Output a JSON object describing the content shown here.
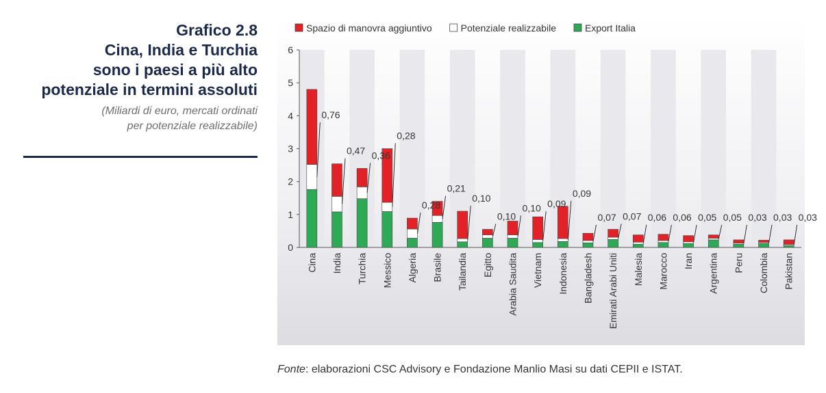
{
  "header": {
    "chart_number": "Grafico 2.8",
    "title_lines": [
      "Cina, India e Turchia",
      "sono i paesi a più alto",
      "potenziale in termini assoluti"
    ],
    "subtitle": "(Miliardi di euro, mercati ordinati\nper potenziale realizzabile)"
  },
  "source": {
    "lead": "Fonte",
    "text": ": elaborazioni CSC Advisory e Fondazione Manlio Masi su dati CEPII e ISTAT."
  },
  "colors": {
    "spazio": "#e32228",
    "potenziale": "#ffffff",
    "export": "#2eaa56",
    "title": "#1b2a4a",
    "band": "#e9e9ed"
  },
  "chart_data": {
    "type": "bar",
    "stacked": true,
    "ylim": [
      0,
      6
    ],
    "yticks": [
      0,
      1,
      2,
      3,
      4,
      5,
      6
    ],
    "legend_position": "top",
    "categories": [
      "Cina",
      "India",
      "Turchia",
      "Messico",
      "Algeria",
      "Brasile",
      "Tailandia",
      "Egitto",
      "Arabia Saudita",
      "Vietnam",
      "Indonesia",
      "Bangladesh",
      "Emirati Arabi Uniti",
      "Malesia",
      "Marocco",
      "Iran",
      "Argentina",
      "Peru",
      "Colombia",
      "Pakistan"
    ],
    "series": [
      {
        "name": "Export Italia",
        "color": "#2eaa56",
        "values": [
          1.76,
          1.08,
          1.48,
          1.09,
          0.28,
          0.76,
          0.17,
          0.28,
          0.28,
          0.15,
          0.18,
          0.14,
          0.24,
          0.1,
          0.15,
          0.12,
          0.23,
          0.1,
          0.12,
          0.06
        ]
      },
      {
        "name": "Potenziale realizzabile",
        "color": "#ffffff",
        "values": [
          0.76,
          0.47,
          0.36,
          0.28,
          0.28,
          0.21,
          0.1,
          0.1,
          0.1,
          0.09,
          0.09,
          0.07,
          0.07,
          0.06,
          0.06,
          0.05,
          0.05,
          0.03,
          0.03,
          0.03
        ]
      },
      {
        "name": "Spazio di manovra aggiuntivo",
        "color": "#e32228",
        "values": [
          2.28,
          0.99,
          0.56,
          1.63,
          0.33,
          0.43,
          0.83,
          0.17,
          0.42,
          0.69,
          0.98,
          0.22,
          0.24,
          0.22,
          0.19,
          0.19,
          0.1,
          0.1,
          0.07,
          0.14
        ]
      }
    ],
    "data_labels": [
      "0,76",
      "0,47",
      "0,36",
      "0,28",
      "0,28",
      "0,21",
      "0,10",
      "0,10",
      "0,10",
      "0,09",
      "0,09",
      "0,07",
      "0,07",
      "0,06",
      "0,06",
      "0,05",
      "0,05",
      "0,03",
      "0,03",
      "0,03"
    ]
  }
}
